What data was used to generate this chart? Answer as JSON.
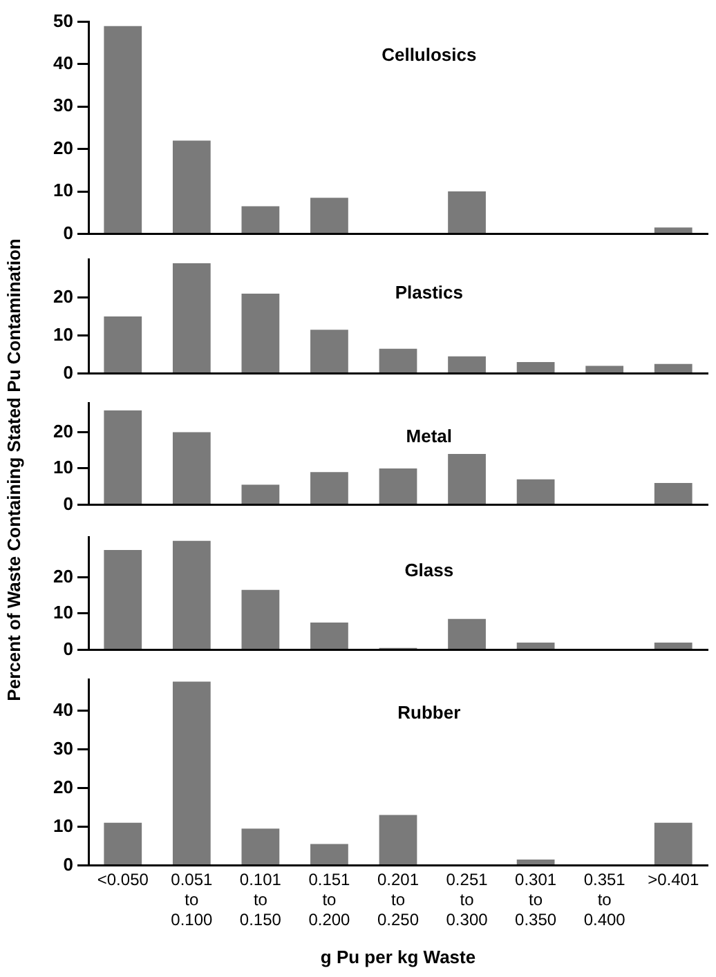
{
  "chart_data": [
    {
      "type": "bar",
      "title": "Cellulosics",
      "values": [
        49,
        22,
        6.5,
        8.5,
        0,
        10,
        0,
        0,
        1.5
      ],
      "color": "#7a7a7a",
      "ylim": [
        0,
        50
      ],
      "yticks": [
        0,
        10,
        20,
        30,
        40,
        50
      ],
      "tick_labels": "y"
    },
    {
      "type": "bar",
      "title": "Plastics",
      "values": [
        15,
        29,
        21,
        11.5,
        6.5,
        4.5,
        3,
        2,
        2.5
      ],
      "color": "#7a7a7a",
      "ylim": [
        0,
        30
      ],
      "yticks": [
        0,
        10,
        20
      ],
      "tick_labels": "y"
    },
    {
      "type": "bar",
      "title": "Metal",
      "ylabel": "Percent of Waste Containing Stated Pu Contamination",
      "values": [
        26,
        20,
        5.5,
        9,
        10,
        14,
        7,
        0,
        6
      ],
      "color": "#7a7a7a",
      "ylim": [
        0,
        28
      ],
      "yticks": [
        0,
        10,
        20
      ],
      "tick_labels": "y"
    },
    {
      "type": "bar",
      "title": "Glass",
      "values": [
        27.5,
        30,
        16.5,
        7.5,
        0.5,
        8.5,
        2,
        0,
        2
      ],
      "color": "#7a7a7a",
      "ylim": [
        0,
        31
      ],
      "yticks": [
        0,
        10,
        20
      ],
      "tick_labels": "y"
    },
    {
      "type": "bar",
      "title": "Rubber",
      "xlabel": "g Pu per kg Waste",
      "categories": [
        "<0.050",
        "0.051\nto\n0.100",
        "0.101\nto\n0.150",
        "0.151\nto\n0.200",
        "0.201\nto\n0.250",
        "0.251\nto\n0.300",
        "0.301\nto\n0.350",
        "0.351\nto\n0.400",
        ">0.401"
      ],
      "values": [
        11,
        47.5,
        9.5,
        5.5,
        13,
        0,
        1.5,
        0,
        11
      ],
      "color": "#7a7a7a",
      "ylim": [
        0,
        48
      ],
      "yticks": [
        0,
        10,
        20,
        30,
        40
      ]
    }
  ]
}
